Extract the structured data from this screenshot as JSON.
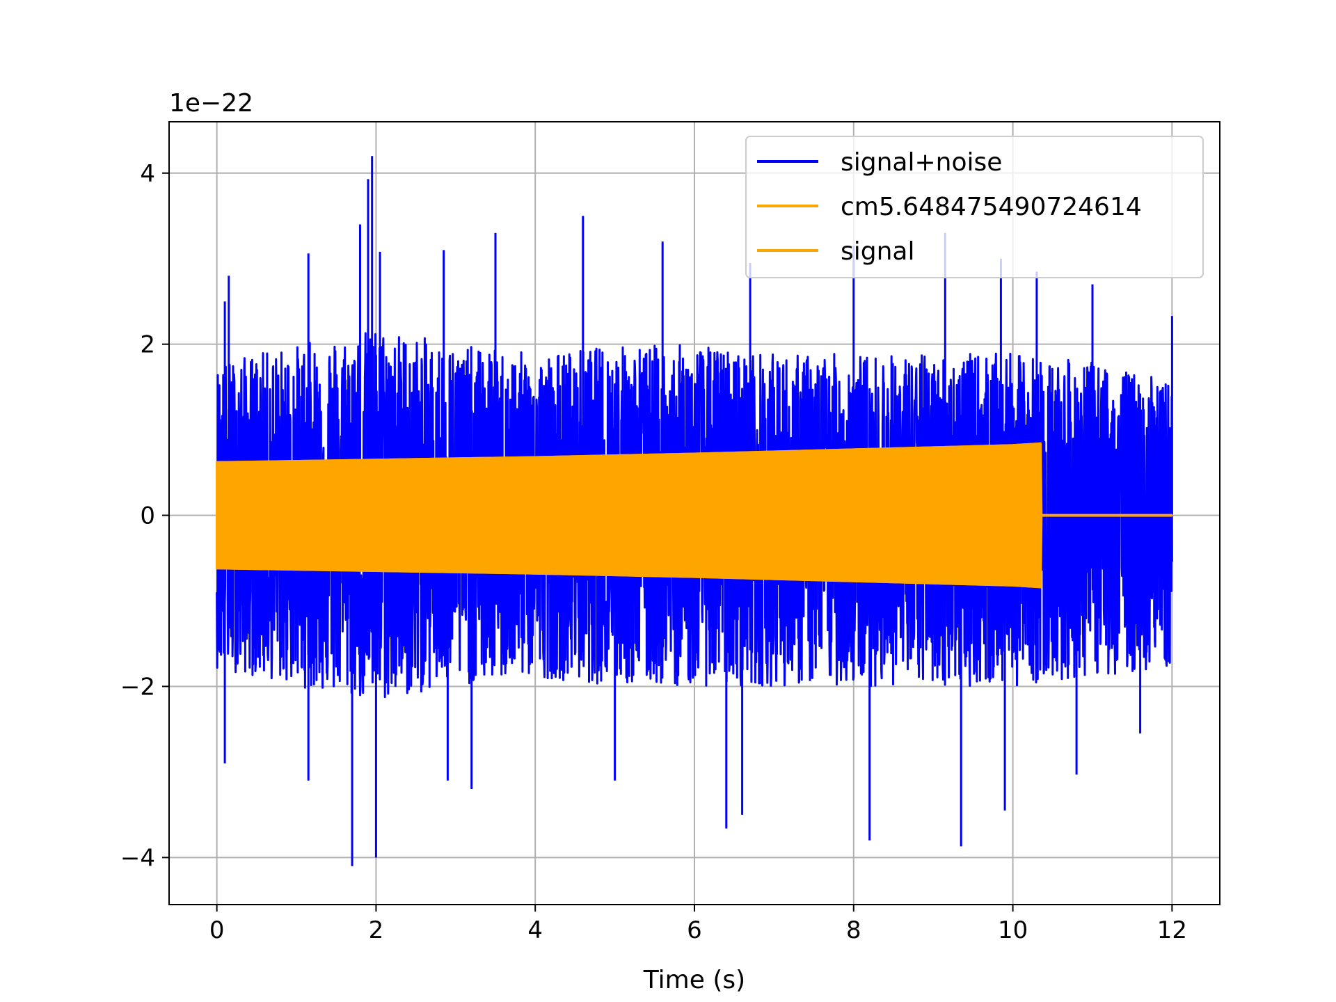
{
  "chart_data": {
    "type": "line",
    "title": "",
    "xlabel": "Time (s)",
    "ylabel": "",
    "y_offset_label": "1e−22",
    "xlim": [
      -0.6,
      12.6
    ],
    "ylim": [
      -4.55,
      4.6
    ],
    "y_scale_factor": 1e-22,
    "grid": true,
    "legend_placement": "top-right",
    "x_ticks": [
      0,
      2,
      4,
      6,
      8,
      10,
      12
    ],
    "x_tick_labels": [
      "0",
      "2",
      "4",
      "6",
      "8",
      "10",
      "12"
    ],
    "y_ticks": [
      -4,
      -2,
      0,
      2,
      4
    ],
    "y_tick_labels": [
      "−4",
      "−2",
      "0",
      "2",
      "4"
    ],
    "series": [
      {
        "name": "signal+noise",
        "color": "#0000ff",
        "x_range": [
          0,
          12
        ],
        "envelope_upper": [
          [
            0,
            1.7
          ],
          [
            1,
            1.9
          ],
          [
            2,
            2.1
          ],
          [
            3,
            1.9
          ],
          [
            4,
            1.8
          ],
          [
            5,
            1.9
          ],
          [
            6,
            1.9
          ],
          [
            7,
            1.8
          ],
          [
            8,
            1.8
          ],
          [
            9,
            1.8
          ],
          [
            10,
            1.8
          ],
          [
            11,
            1.7
          ],
          [
            12,
            1.5
          ]
        ],
        "envelope_lower": [
          [
            0,
            -1.7
          ],
          [
            1,
            -1.9
          ],
          [
            2,
            -2.1
          ],
          [
            3,
            -1.9
          ],
          [
            4,
            -1.8
          ],
          [
            5,
            -1.9
          ],
          [
            6,
            -1.9
          ],
          [
            7,
            -1.9
          ],
          [
            8,
            -1.9
          ],
          [
            9,
            -1.9
          ],
          [
            10,
            -1.9
          ],
          [
            11,
            -1.8
          ],
          [
            12,
            -1.7
          ]
        ],
        "peaks": [
          [
            0.1,
            2.5
          ],
          [
            0.15,
            2.8
          ],
          [
            1.15,
            3.06
          ],
          [
            1.8,
            3.4
          ],
          [
            1.9,
            3.93
          ],
          [
            1.95,
            4.2
          ],
          [
            2.05,
            3.08
          ],
          [
            2.85,
            3.1
          ],
          [
            3.5,
            3.3
          ],
          [
            4.6,
            3.5
          ],
          [
            5.6,
            3.2
          ],
          [
            6.7,
            2.95
          ],
          [
            8.0,
            3.15
          ],
          [
            9.15,
            3.3
          ],
          [
            9.85,
            3.0
          ],
          [
            10.3,
            2.85
          ],
          [
            11.0,
            2.7
          ],
          [
            12.0,
            2.33
          ]
        ],
        "troughs": [
          [
            0.1,
            -2.9
          ],
          [
            1.15,
            -3.1
          ],
          [
            1.7,
            -4.1
          ],
          [
            2.0,
            -4.0
          ],
          [
            2.9,
            -3.1
          ],
          [
            3.2,
            -3.2
          ],
          [
            5.0,
            -3.1
          ],
          [
            6.4,
            -3.66
          ],
          [
            6.6,
            -3.5
          ],
          [
            8.2,
            -3.8
          ],
          [
            9.35,
            -3.87
          ],
          [
            9.9,
            -3.45
          ],
          [
            10.8,
            -3.03
          ],
          [
            11.6,
            -2.55
          ]
        ]
      },
      {
        "name": "cm5.648475490724614",
        "color": "#ffa500",
        "x_range": [
          0,
          10.35
        ],
        "envelope_upper": [
          [
            0,
            0.62
          ],
          [
            2,
            0.65
          ],
          [
            4,
            0.68
          ],
          [
            6,
            0.72
          ],
          [
            8,
            0.77
          ],
          [
            10,
            0.82
          ],
          [
            10.35,
            0.84
          ]
        ],
        "envelope_lower": [
          [
            0,
            -0.62
          ],
          [
            2,
            -0.65
          ],
          [
            4,
            -0.68
          ],
          [
            6,
            -0.72
          ],
          [
            8,
            -0.77
          ],
          [
            10,
            -0.82
          ],
          [
            10.35,
            -0.84
          ]
        ]
      },
      {
        "name": "signal",
        "color": "#ffa500",
        "x_range": [
          0,
          12
        ],
        "envelope_upper": [
          [
            0,
            0.62
          ],
          [
            2,
            0.65
          ],
          [
            4,
            0.68
          ],
          [
            6,
            0.72
          ],
          [
            8,
            0.77
          ],
          [
            10,
            0.82
          ],
          [
            10.35,
            0.84
          ],
          [
            10.36,
            0.0
          ],
          [
            12,
            0.0
          ]
        ],
        "envelope_lower": [
          [
            0,
            -0.62
          ],
          [
            2,
            -0.65
          ],
          [
            4,
            -0.68
          ],
          [
            6,
            -0.72
          ],
          [
            8,
            -0.77
          ],
          [
            10,
            -0.82
          ],
          [
            10.35,
            -0.84
          ],
          [
            10.36,
            0.0
          ],
          [
            12,
            0.0
          ]
        ]
      }
    ]
  }
}
